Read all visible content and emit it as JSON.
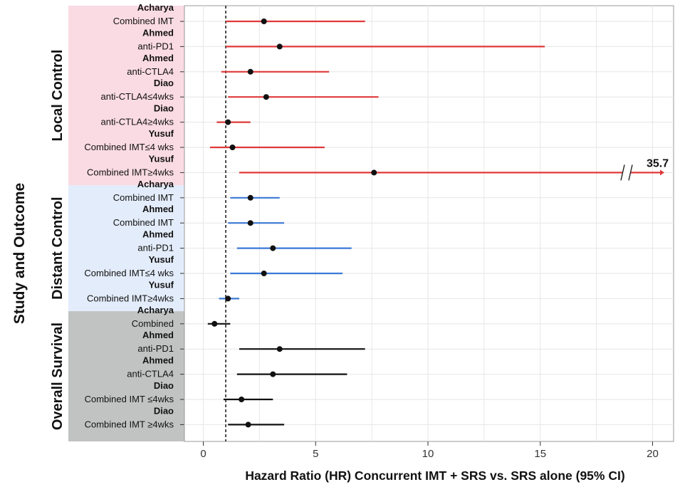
{
  "chart_data": {
    "type": "forest",
    "ylabel": "Study and Outcome",
    "xlabel": "Hazard Ratio (HR) Concurrent IMT + SRS vs. SRS alone (95% CI)",
    "xlim": [
      -0.5,
      20.5
    ],
    "xticks": [
      0,
      5,
      10,
      15,
      20
    ],
    "reference_line": 1,
    "grid": true,
    "groups": [
      {
        "name": "Local Control",
        "color": "#e0393a",
        "band_color": "#fadbe3",
        "rows": [
          {
            "study": "Acharya",
            "outcome": "Combined IMT",
            "hr": 2.7,
            "lo": 1.0,
            "hi": 7.2
          },
          {
            "study": "Ahmed",
            "outcome": "anti-PD1",
            "hr": 3.4,
            "lo": 1.0,
            "hi": 15.2
          },
          {
            "study": "Ahmed",
            "outcome": "anti-CTLA4",
            "hr": 2.1,
            "lo": 0.8,
            "hi": 5.6
          },
          {
            "study": "Diao",
            "outcome": "anti-CTLA4≤4wks",
            "hr": 2.8,
            "lo": 1.1,
            "hi": 7.8
          },
          {
            "study": "Diao",
            "outcome": "anti-CTLA4≥4wks",
            "hr": 1.1,
            "lo": 0.6,
            "hi": 2.1
          },
          {
            "study": "Yusuf",
            "outcome": "Combined IMT≤4 wks",
            "hr": 1.3,
            "lo": 0.3,
            "hi": 5.4
          },
          {
            "study": "Yusuf",
            "outcome": "Combined IMT≥4wks",
            "hr": 7.6,
            "lo": 1.6,
            "hi": 35.7,
            "hi_label": "35.7",
            "truncated": true
          }
        ]
      },
      {
        "name": "Distant Control",
        "color": "#3a78d6",
        "band_color": "#e3ecfa",
        "rows": [
          {
            "study": "Acharya",
            "outcome": "Combined IMT",
            "hr": 2.1,
            "lo": 1.2,
            "hi": 3.4
          },
          {
            "study": "Ahmed",
            "outcome": "Combined IMT",
            "hr": 2.1,
            "lo": 1.1,
            "hi": 3.6
          },
          {
            "study": "Ahmed",
            "outcome": "anti-PD1",
            "hr": 3.1,
            "lo": 1.5,
            "hi": 6.6
          },
          {
            "study": "Yusuf",
            "outcome": "Combined IMT≤4 wks",
            "hr": 2.7,
            "lo": 1.2,
            "hi": 6.2
          },
          {
            "study": "Yusuf",
            "outcome": "Combined IMT≥4wks",
            "hr": 1.1,
            "lo": 0.7,
            "hi": 1.6
          }
        ]
      },
      {
        "name": "Overall Survival",
        "color": "#111111",
        "band_color": "#c1c3c2",
        "rows": [
          {
            "study": "Acharya",
            "outcome": "Combined",
            "hr": 0.5,
            "lo": 0.2,
            "hi": 1.2
          },
          {
            "study": "Ahmed",
            "outcome": "anti-PD1",
            "hr": 3.4,
            "lo": 1.6,
            "hi": 7.2
          },
          {
            "study": "Ahmed",
            "outcome": "anti-CTLA4",
            "hr": 3.1,
            "lo": 1.5,
            "hi": 6.4
          },
          {
            "study": "Diao",
            "outcome": "Combined IMT ≤4wks",
            "hr": 1.7,
            "lo": 0.9,
            "hi": 3.1
          },
          {
            "study": "Diao",
            "outcome": "Combined IMT ≥4wks",
            "hr": 2.0,
            "lo": 1.1,
            "hi": 3.6
          }
        ]
      }
    ]
  }
}
